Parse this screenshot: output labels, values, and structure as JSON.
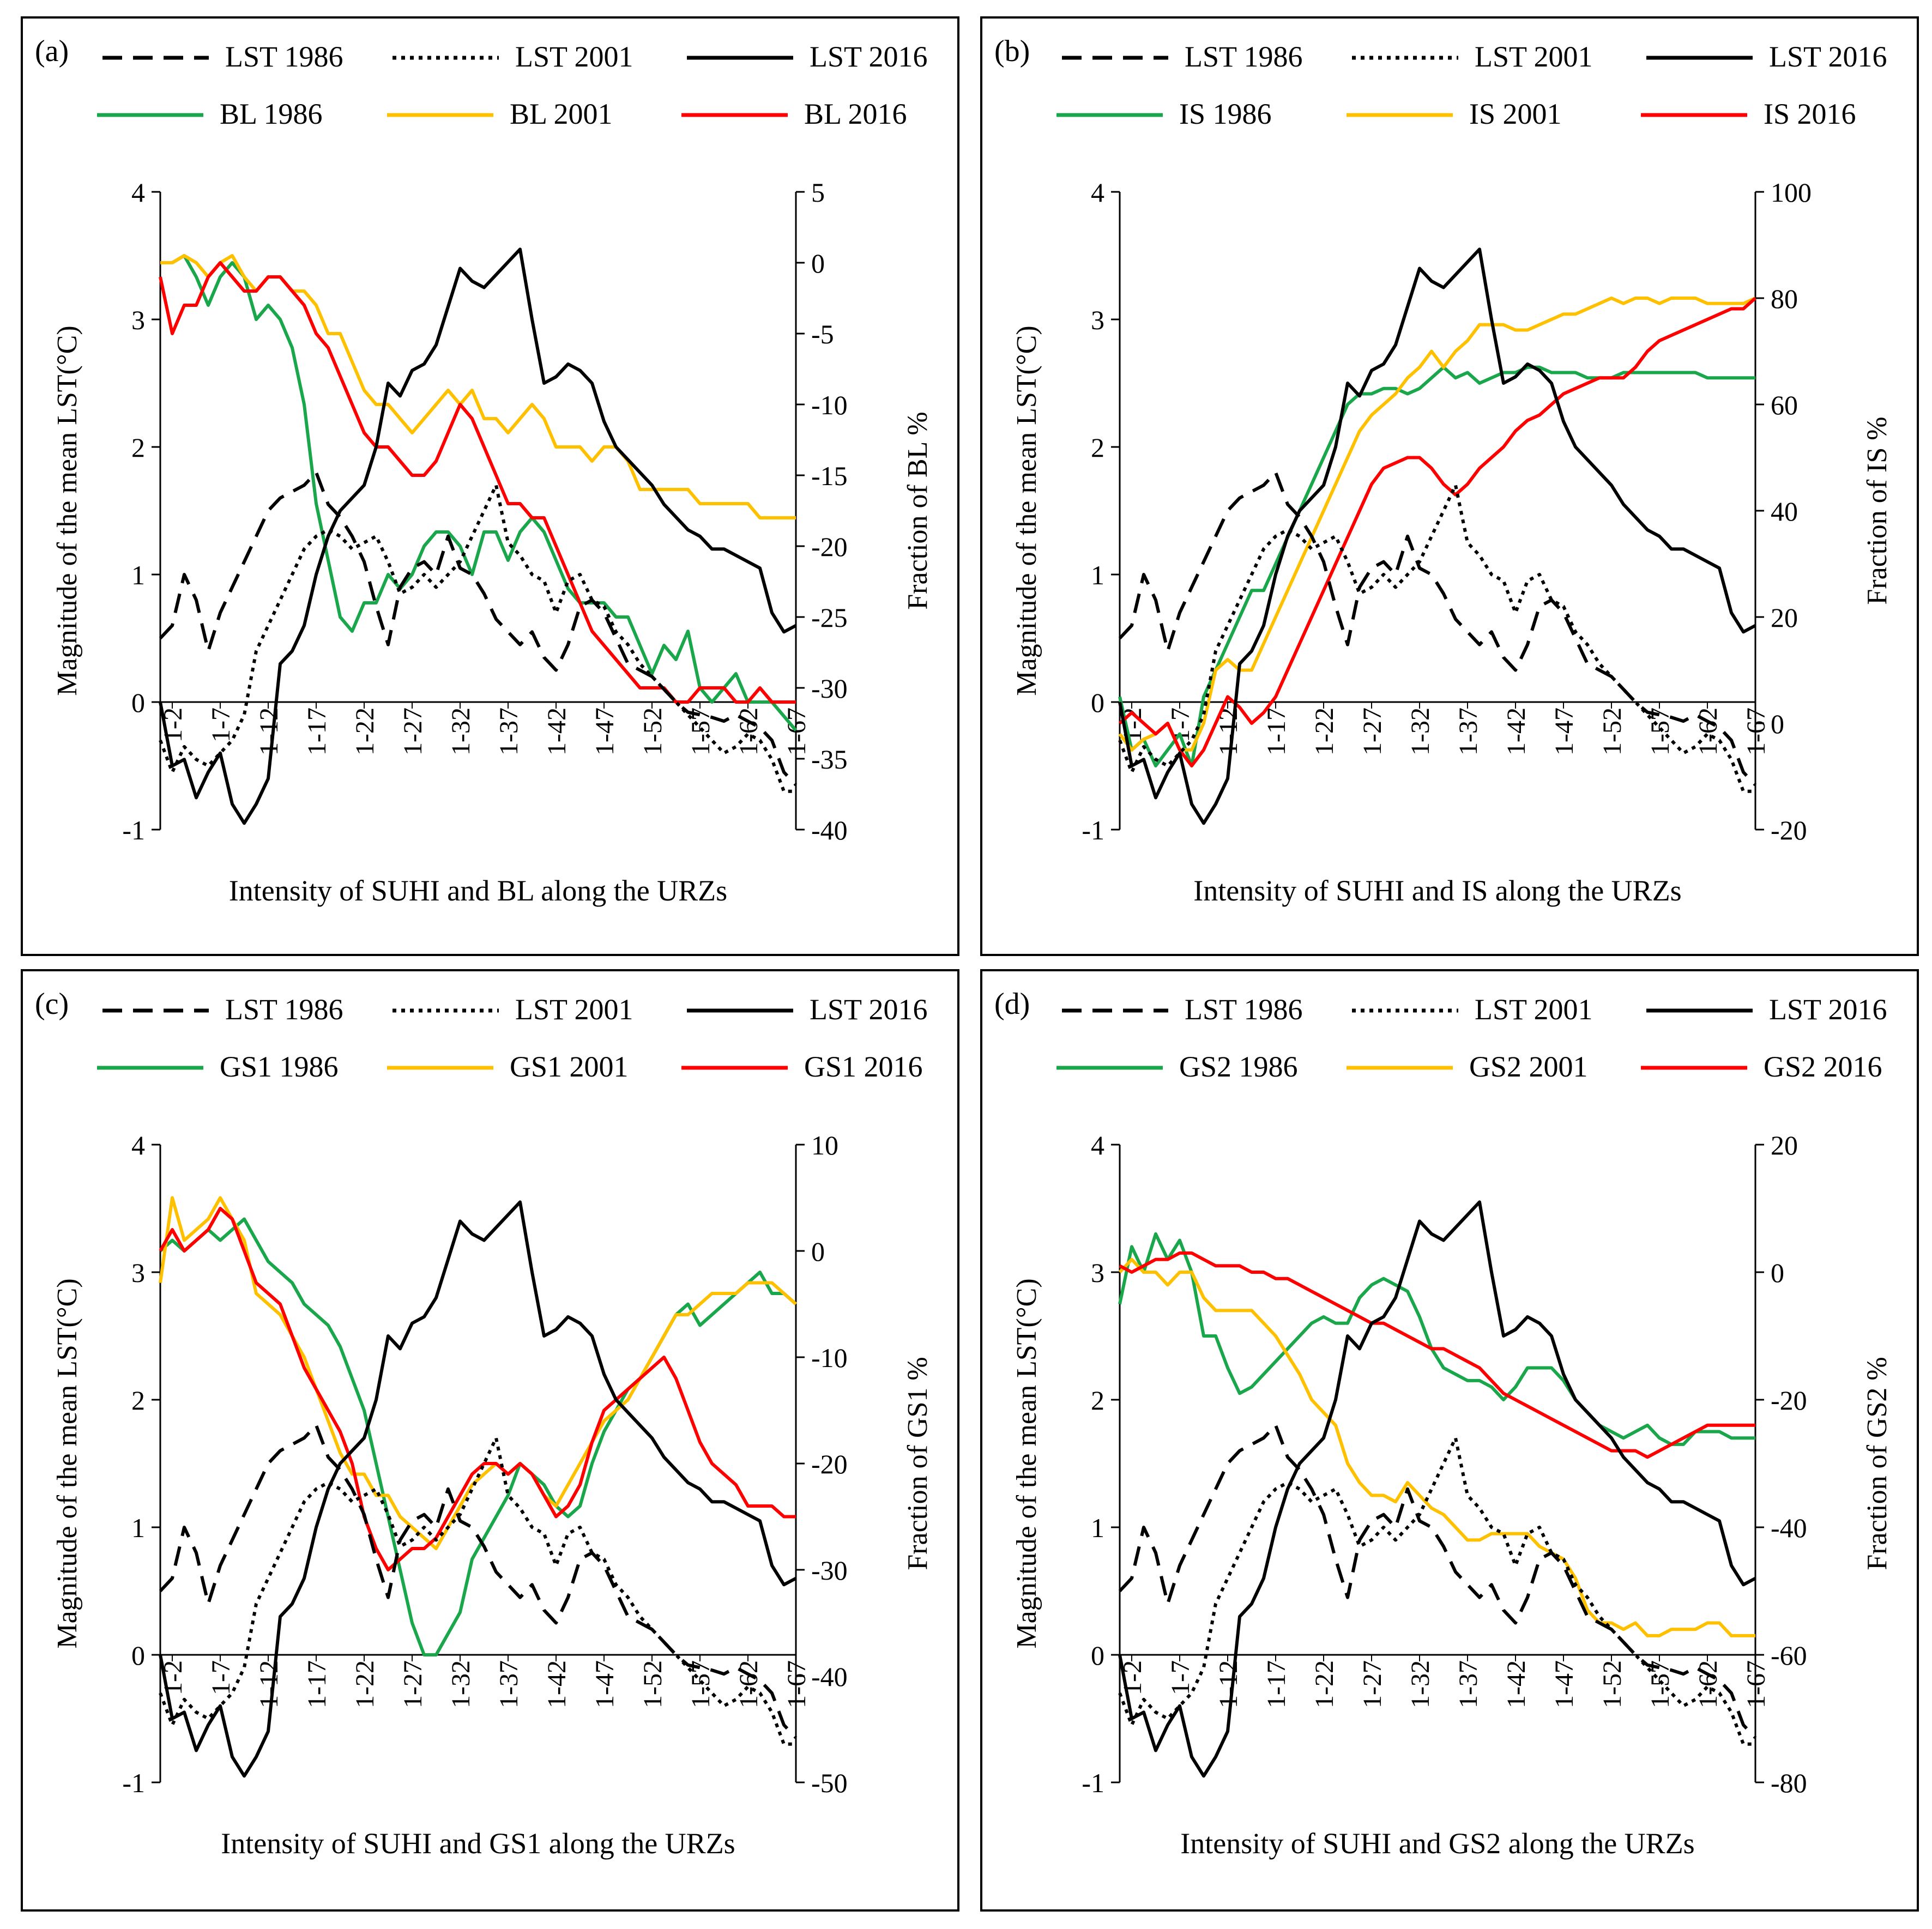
{
  "figure": {
    "x_ticks": [
      "1-2",
      "1-7",
      "1-12",
      "1-17",
      "1-22",
      "1-27",
      "1-32",
      "1-37",
      "1-42",
      "1-47",
      "1-52",
      "1-57",
      "1-62",
      "1-67"
    ],
    "left_axis": {
      "label": "Magnitude of the mean LST(°C)",
      "ticks": [
        -1,
        0,
        1,
        2,
        3,
        4
      ]
    }
  },
  "legend_labels": {
    "lst1986": "LST  1986",
    "lst2001": "LST  2001",
    "lst2016": "LST  2016"
  },
  "colors": {
    "lst": "#000000",
    "y1986": "#1aa64b",
    "y2001": "#ffc000",
    "y2016": "#ff0000"
  },
  "lst_series": {
    "lst1986": [
      0.5,
      0.6,
      1.0,
      0.8,
      0.4,
      0.7,
      0.9,
      1.1,
      1.3,
      1.5,
      1.6,
      1.65,
      1.7,
      1.8,
      1.55,
      1.45,
      1.3,
      1.1,
      0.75,
      0.45,
      0.9,
      1.05,
      1.1,
      1.0,
      1.3,
      1.05,
      1.0,
      0.85,
      0.65,
      0.55,
      0.45,
      0.55,
      0.35,
      0.25,
      0.45,
      0.75,
      0.8,
      0.7,
      0.5,
      0.3,
      0.25,
      0.2,
      0.1,
      0.0,
      -0.08,
      -0.1,
      -0.12,
      -0.15,
      -0.1,
      -0.15,
      -0.2,
      -0.3,
      -0.55,
      -0.65
    ],
    "lst2001": [
      -0.3,
      -0.55,
      -0.35,
      -0.45,
      -0.5,
      -0.4,
      -0.3,
      -0.1,
      0.4,
      0.6,
      0.8,
      1.0,
      1.2,
      1.3,
      1.35,
      1.3,
      1.2,
      1.25,
      1.3,
      1.1,
      0.85,
      0.9,
      1.0,
      0.9,
      1.0,
      1.1,
      1.3,
      1.5,
      1.7,
      1.25,
      1.15,
      1.0,
      0.95,
      0.7,
      0.95,
      1.0,
      0.8,
      0.75,
      0.55,
      0.45,
      0.3,
      0.2,
      0.1,
      0.0,
      -0.1,
      -0.2,
      -0.3,
      -0.4,
      -0.35,
      -0.25,
      -0.3,
      -0.45,
      -0.7,
      -0.7
    ],
    "lst2016": [
      0.0,
      -0.5,
      -0.45,
      -0.75,
      -0.55,
      -0.4,
      -0.8,
      -0.95,
      -0.8,
      -0.6,
      0.3,
      0.4,
      0.6,
      1.0,
      1.3,
      1.5,
      1.6,
      1.7,
      2.0,
      2.5,
      2.4,
      2.6,
      2.65,
      2.8,
      3.1,
      3.4,
      3.3,
      3.25,
      3.35,
      3.45,
      3.55,
      3.0,
      2.5,
      2.55,
      2.65,
      2.6,
      2.5,
      2.2,
      2.0,
      1.9,
      1.8,
      1.7,
      1.55,
      1.45,
      1.35,
      1.3,
      1.2,
      1.2,
      1.15,
      1.1,
      1.05,
      0.7,
      0.55,
      0.6
    ]
  },
  "panels": [
    {
      "tag": "(a)",
      "legend": {
        "y1986": "BL 1986",
        "y2001": "BL 2001",
        "y2016": "BL 2016"
      },
      "right_axis": {
        "label": "Fraction of BL %",
        "min": -40,
        "max": 5,
        "ticks": [
          -40,
          -35,
          -30,
          -25,
          -20,
          -15,
          -10,
          -5,
          0,
          5
        ]
      },
      "xlabel": "Intensity of SUHI and BL along the URZs"
    },
    {
      "tag": "(b)",
      "legend": {
        "y1986": "IS 1986",
        "y2001": "IS 2001",
        "y2016": "IS 2016"
      },
      "right_axis": {
        "label": "Fraction of IS %",
        "min": -20,
        "max": 100,
        "ticks": [
          -20,
          0,
          20,
          40,
          60,
          80,
          100
        ]
      },
      "xlabel": "Intensity of SUHI and IS along the URZs"
    },
    {
      "tag": "(c)",
      "legend": {
        "y1986": "GS1 1986",
        "y2001": "GS1 2001",
        "y2016": "GS1 2016"
      },
      "right_axis": {
        "label": "Fraction of GS1 %",
        "min": -50,
        "max": 10,
        "ticks": [
          -50,
          -40,
          -30,
          -20,
          -10,
          0,
          10
        ]
      },
      "xlabel": "Intensity of SUHI and GS1 along the URZs"
    },
    {
      "tag": "(d)",
      "legend": {
        "y1986": "GS2 1986",
        "y2001": "GS2 2001",
        "y2016": "GS2 2016"
      },
      "right_axis": {
        "label": "Fraction of GS2  %",
        "min": -80,
        "max": 20,
        "ticks": [
          -80,
          -60,
          -40,
          -20,
          0,
          20
        ]
      },
      "xlabel": "Intensity of SUHI and GS2 along the URZs"
    }
  ],
  "chart_data": [
    {
      "type": "line",
      "title": "(a)",
      "xlabel": "Intensity of SUHI and BL along the URZs",
      "ylabel": "Magnitude of the mean LST(°C)",
      "y2label": "Fraction of BL %",
      "ylim": [
        -1,
        4
      ],
      "y2lim": [
        -40,
        5
      ],
      "series": [
        {
          "name": "BL 1986",
          "axis": "right",
          "values": [
            0,
            0,
            0.5,
            -1,
            -3,
            -1,
            0,
            -1,
            -4,
            -3,
            -4,
            -6,
            -10,
            -17,
            -21,
            -25,
            -26,
            -24,
            -24,
            -22,
            -23,
            -22,
            -20,
            -19,
            -19,
            -20,
            -22,
            -19,
            -19,
            -21,
            -19,
            -18,
            -19,
            -21,
            -23,
            -24,
            -24,
            -24,
            -25,
            -25,
            -27,
            -29,
            -27,
            -28,
            -26,
            -30,
            -31,
            -30,
            -29,
            -31,
            -31,
            -31,
            -32,
            -33
          ]
        },
        {
          "name": "BL 2001",
          "axis": "right",
          "values": [
            0,
            0,
            0.5,
            0,
            -1,
            0,
            0.5,
            -1,
            -2,
            -1,
            -1,
            -2,
            -2,
            -3,
            -5,
            -5,
            -7,
            -9,
            -10,
            -10,
            -11,
            -12,
            -11,
            -10,
            -9,
            -10,
            -9,
            -11,
            -11,
            -12,
            -11,
            -10,
            -11,
            -13,
            -13,
            -13,
            -14,
            -13,
            -13,
            -14,
            -16,
            -16,
            -16,
            -16,
            -16,
            -17,
            -17,
            -17,
            -17,
            -17,
            -18,
            -18,
            -18,
            -18
          ]
        },
        {
          "name": "BL 2016",
          "axis": "right",
          "values": [
            -1,
            -5,
            -3,
            -3,
            -1,
            0,
            -1,
            -2,
            -2,
            -1,
            -1,
            -2,
            -3,
            -5,
            -6,
            -8,
            -10,
            -12,
            -13,
            -13,
            -14,
            -15,
            -15,
            -14,
            -12,
            -10,
            -11,
            -13,
            -15,
            -17,
            -17,
            -18,
            -18,
            -20,
            -22,
            -24,
            -26,
            -27,
            -28,
            -29,
            -30,
            -30,
            -30,
            -31,
            -31,
            -30,
            -30,
            -30,
            -31,
            -31,
            -30,
            -31,
            -31,
            -31
          ]
        }
      ]
    },
    {
      "type": "line",
      "title": "(b)",
      "xlabel": "Intensity of SUHI and IS along the URZs",
      "ylabel": "Magnitude of the mean LST(°C)",
      "y2label": "Fraction of IS %",
      "ylim": [
        -1,
        4
      ],
      "y2lim": [
        -20,
        100
      ],
      "series": [
        {
          "name": "IS 1986",
          "axis": "right",
          "values": [
            5,
            -5,
            -3,
            -8,
            -5,
            -2,
            -8,
            5,
            10,
            15,
            20,
            25,
            25,
            30,
            35,
            40,
            45,
            50,
            55,
            60,
            62,
            62,
            63,
            63,
            62,
            63,
            65,
            67,
            65,
            66,
            64,
            65,
            66,
            66,
            67,
            67,
            66,
            66,
            66,
            65,
            65,
            65,
            66,
            66,
            66,
            66,
            66,
            66,
            66,
            65,
            65,
            65,
            65,
            65
          ]
        },
        {
          "name": "IS 2001",
          "axis": "right",
          "values": [
            -2,
            -5,
            -3,
            -2,
            0,
            -5,
            -5,
            0,
            10,
            12,
            10,
            10,
            15,
            20,
            25,
            30,
            35,
            40,
            45,
            50,
            55,
            58,
            60,
            62,
            65,
            67,
            70,
            67,
            70,
            72,
            75,
            75,
            75,
            74,
            74,
            75,
            76,
            77,
            77,
            78,
            79,
            80,
            79,
            80,
            80,
            79,
            80,
            80,
            80,
            79,
            79,
            79,
            79,
            80
          ]
        },
        {
          "name": "IS 2016",
          "axis": "right",
          "values": [
            0,
            2,
            0,
            -2,
            0,
            -5,
            -8,
            -5,
            0,
            5,
            3,
            0,
            2,
            5,
            10,
            15,
            20,
            25,
            30,
            35,
            40,
            45,
            48,
            49,
            50,
            50,
            48,
            45,
            43,
            45,
            48,
            50,
            52,
            55,
            57,
            58,
            60,
            62,
            63,
            64,
            65,
            65,
            65,
            67,
            70,
            72,
            73,
            74,
            75,
            76,
            77,
            78,
            78,
            80
          ]
        }
      ]
    },
    {
      "type": "line",
      "title": "(c)",
      "xlabel": "Intensity of SUHI and GS1 along the URZs",
      "ylabel": "Magnitude of the mean LST(°C)",
      "y2label": "Fraction of GS1 %",
      "ylim": [
        -1,
        4
      ],
      "y2lim": [
        -50,
        10
      ],
      "series": [
        {
          "name": "GS1 1986",
          "axis": "right",
          "values": [
            0,
            1,
            0,
            1,
            2,
            1,
            2,
            3,
            1,
            -1,
            -2,
            -3,
            -5,
            -6,
            -7,
            -9,
            -12,
            -15,
            -20,
            -25,
            -30,
            -35,
            -38,
            -38,
            -36,
            -34,
            -29,
            -27,
            -25,
            -23,
            -20,
            -21,
            -22,
            -24,
            -25,
            -24,
            -20,
            -17,
            -15,
            -13,
            -12,
            -10,
            -8,
            -6,
            -5,
            -7,
            -6,
            -5,
            -4,
            -3,
            -2,
            -4,
            -4,
            -5
          ]
        },
        {
          "name": "GS1 2001",
          "axis": "right",
          "values": [
            -3,
            5,
            1,
            2,
            3,
            5,
            3,
            1,
            -4,
            -5,
            -6,
            -8,
            -10,
            -13,
            -16,
            -19,
            -21,
            -21,
            -23,
            -23,
            -25,
            -26,
            -27,
            -28,
            -26,
            -24,
            -22,
            -21,
            -20,
            -21,
            -20,
            -21,
            -23,
            -24,
            -22,
            -20,
            -18,
            -16,
            -15,
            -14,
            -12,
            -10,
            -8,
            -6,
            -6,
            -5,
            -4,
            -4,
            -4,
            -3,
            -3,
            -3,
            -4,
            -5
          ]
        },
        {
          "name": "GS1 2016",
          "axis": "right",
          "values": [
            0,
            2,
            0,
            1,
            2,
            4,
            3,
            0,
            -3,
            -4,
            -5,
            -8,
            -11,
            -13,
            -15,
            -17,
            -20,
            -25,
            -28,
            -30,
            -29,
            -28,
            -28,
            -27,
            -25,
            -23,
            -21,
            -20,
            -20,
            -21,
            -20,
            -21,
            -23,
            -25,
            -24,
            -22,
            -18,
            -15,
            -14,
            -13,
            -12,
            -11,
            -10,
            -12,
            -15,
            -18,
            -20,
            -21,
            -22,
            -24,
            -24,
            -24,
            -25,
            -25
          ]
        }
      ]
    },
    {
      "type": "line",
      "title": "(d)",
      "xlabel": "Intensity of SUHI and GS2 along the URZs",
      "ylabel": "Magnitude of the mean LST(°C)",
      "y2label": "Fraction of GS2  %",
      "ylim": [
        -1,
        4
      ],
      "y2lim": [
        -80,
        20
      ],
      "series": [
        {
          "name": "GS2 1986",
          "axis": "right",
          "values": [
            -5,
            4,
            0,
            6,
            2,
            5,
            0,
            -10,
            -10,
            -15,
            -19,
            -18,
            -16,
            -14,
            -12,
            -10,
            -8,
            -7,
            -8,
            -8,
            -4,
            -2,
            -1,
            -2,
            -3,
            -7,
            -12,
            -15,
            -16,
            -17,
            -17,
            -18,
            -20,
            -18,
            -15,
            -15,
            -15,
            -17,
            -20,
            -22,
            -24,
            -25,
            -26,
            -25,
            -24,
            -26,
            -27,
            -27,
            -25,
            -25,
            -25,
            -26,
            -26,
            -26
          ]
        },
        {
          "name": "GS2 2001",
          "axis": "right",
          "values": [
            0,
            2,
            0,
            0,
            -2,
            0,
            0,
            -4,
            -6,
            -6,
            -6,
            -6,
            -8,
            -10,
            -13,
            -16,
            -20,
            -22,
            -24,
            -30,
            -33,
            -35,
            -35,
            -36,
            -33,
            -35,
            -37,
            -38,
            -40,
            -42,
            -42,
            -41,
            -41,
            -41,
            -41,
            -43,
            -44,
            -45,
            -48,
            -53,
            -55,
            -55,
            -56,
            -55,
            -57,
            -57,
            -56,
            -56,
            -56,
            -55,
            -55,
            -57,
            -57,
            -57
          ]
        },
        {
          "name": "GS2 2016",
          "axis": "right",
          "values": [
            1,
            0,
            1,
            2,
            2,
            3,
            3,
            2,
            1,
            1,
            1,
            0,
            0,
            -1,
            -1,
            -2,
            -3,
            -4,
            -5,
            -6,
            -7,
            -8,
            -8,
            -9,
            -10,
            -11,
            -12,
            -12,
            -13,
            -14,
            -15,
            -17,
            -19,
            -20,
            -21,
            -22,
            -23,
            -24,
            -25,
            -26,
            -27,
            -28,
            -28,
            -28,
            -29,
            -28,
            -27,
            -26,
            -25,
            -24,
            -24,
            -24,
            -24,
            -24
          ]
        }
      ]
    }
  ]
}
